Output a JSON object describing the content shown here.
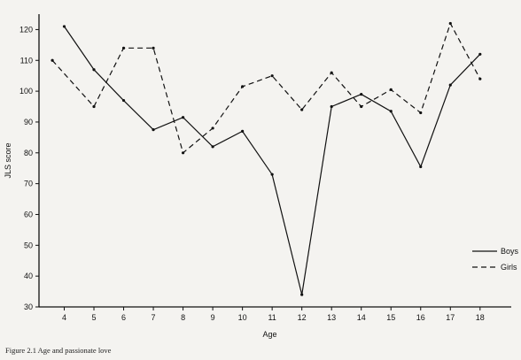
{
  "caption": "Figure 2.1  Age and passionate love",
  "chart_data": {
    "type": "line",
    "title": "",
    "xlabel": "Age",
    "ylabel": "JLS score",
    "x": [
      4,
      5,
      6,
      7,
      8,
      9,
      10,
      11,
      12,
      13,
      14,
      15,
      16,
      17,
      18
    ],
    "xlim": [
      3.15,
      19.05
    ],
    "ylim": [
      30,
      125
    ],
    "yticks": [
      30,
      40,
      50,
      60,
      70,
      80,
      90,
      100,
      110,
      120
    ],
    "grid": false,
    "legend_position": "lower-right",
    "series": [
      {
        "name": "Boys",
        "style": "solid",
        "color": "#111111",
        "x": [
          4,
          5,
          6,
          7,
          8,
          9,
          10,
          11,
          12,
          13,
          14,
          15,
          16,
          17,
          18
        ],
        "values": [
          121,
          107,
          97,
          87.5,
          91.5,
          82,
          87,
          73,
          34,
          95,
          99,
          93.5,
          75.5,
          102,
          112
        ]
      },
      {
        "name": "Girls",
        "style": "dashed",
        "color": "#111111",
        "x": [
          3.6,
          5,
          6,
          7,
          8,
          9,
          10,
          11,
          12,
          13,
          14,
          15,
          16,
          17,
          18
        ],
        "values": [
          110,
          95,
          114,
          114,
          80,
          88,
          101.5,
          105,
          94,
          106,
          95,
          100.5,
          93,
          122,
          104
        ]
      }
    ]
  }
}
